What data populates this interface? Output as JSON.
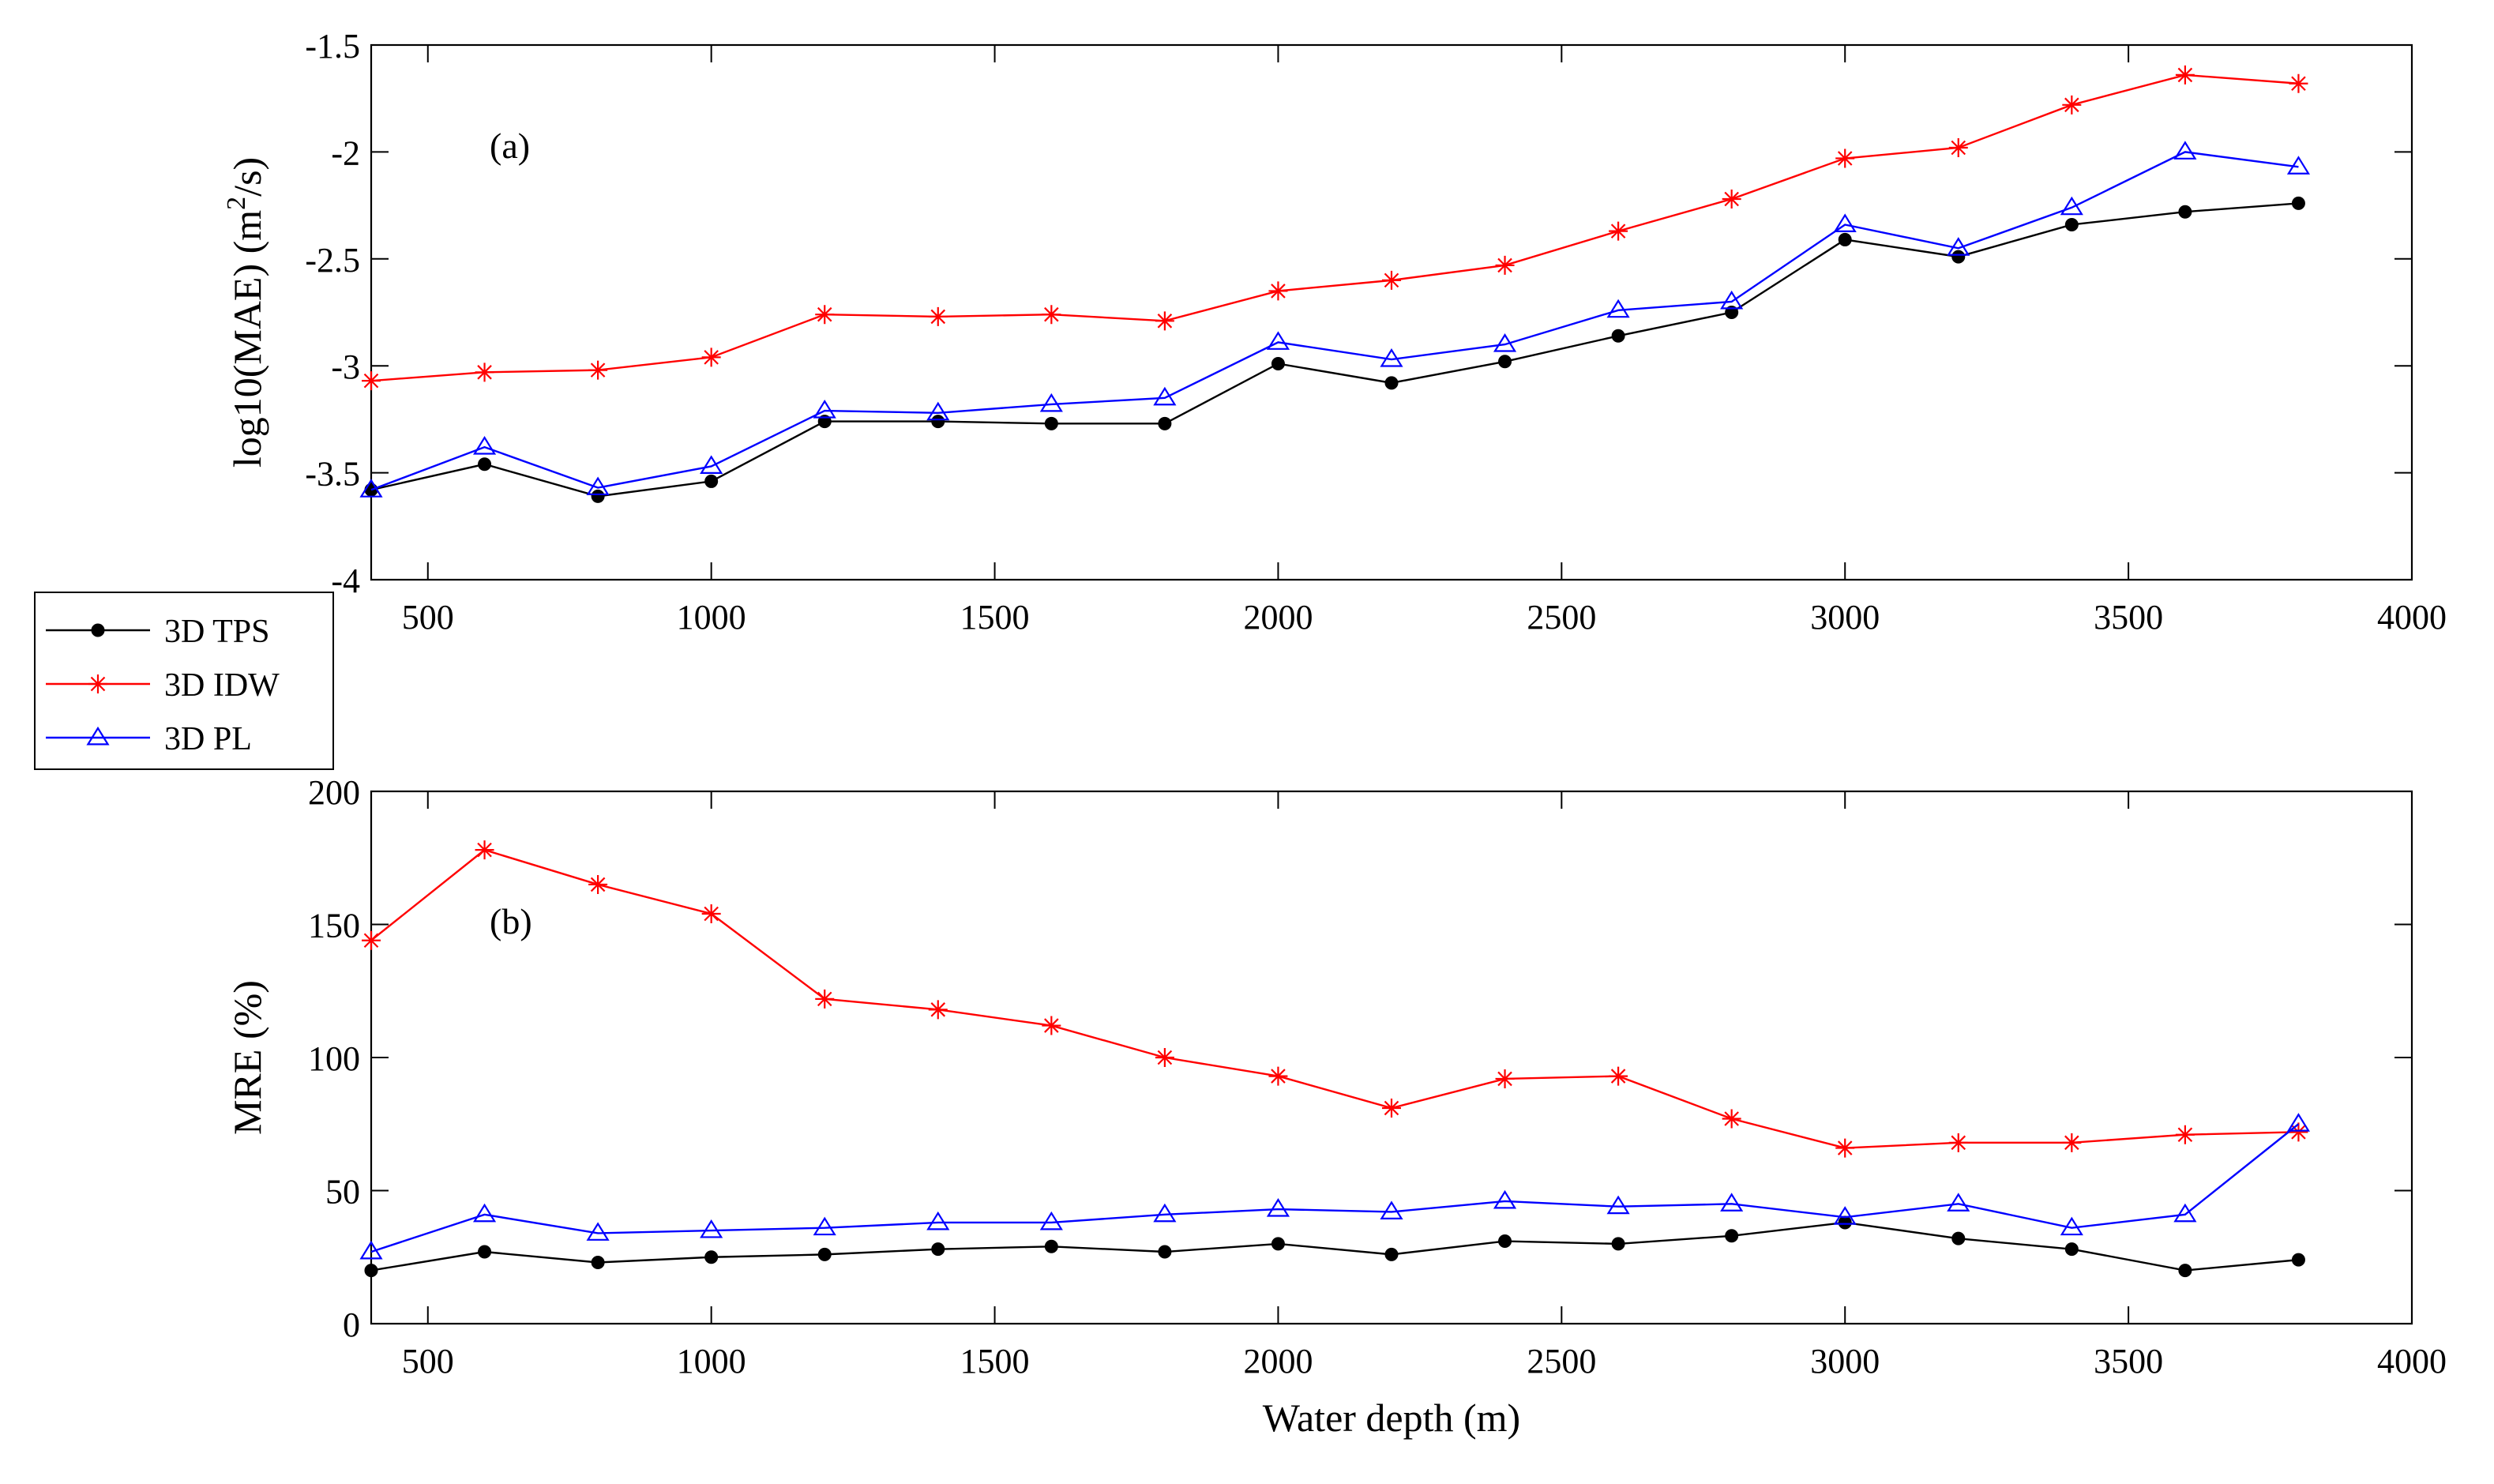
{
  "chart_data": [
    {
      "type": "line",
      "panel_label": "(a)",
      "xlabel": "",
      "ylabel": "log10(MAE) (m²/s)",
      "ylabel_parts": [
        "log10(MAE) (m",
        "2",
        "/s)"
      ],
      "xlim": [
        400,
        4000
      ],
      "ylim": [
        -4,
        -1.5
      ],
      "xticks": [
        500,
        1000,
        1500,
        2000,
        2500,
        3000,
        3500,
        4000
      ],
      "yticks": [
        -4,
        -3.5,
        -3,
        -2.5,
        -2,
        -1.5
      ],
      "x": [
        400,
        600,
        800,
        1000,
        1200,
        1400,
        1600,
        1800,
        2000,
        2200,
        2400,
        2600,
        2800,
        3000,
        3200,
        3400,
        3600,
        3800
      ],
      "series": [
        {
          "name": "3D TPS",
          "color": "#000000",
          "marker": "dot",
          "values": [
            -3.58,
            -3.46,
            -3.61,
            -3.54,
            -3.26,
            -3.26,
            -3.27,
            -3.27,
            -2.99,
            -3.08,
            -2.98,
            -2.86,
            -2.75,
            -2.41,
            -2.49,
            -2.34,
            -2.28,
            -2.24
          ]
        },
        {
          "name": "3D IDW",
          "color": "#ff0000",
          "marker": "star",
          "values": [
            -3.07,
            -3.03,
            -3.02,
            -2.96,
            -2.76,
            -2.77,
            -2.76,
            -2.79,
            -2.65,
            -2.6,
            -2.53,
            -2.37,
            -2.22,
            -2.03,
            -1.98,
            -1.78,
            -1.64,
            -1.68
          ]
        },
        {
          "name": "3D PL",
          "color": "#0000ff",
          "marker": "triangle",
          "values": [
            -3.58,
            -3.38,
            -3.57,
            -3.47,
            -3.21,
            -3.22,
            -3.18,
            -3.15,
            -2.89,
            -2.97,
            -2.9,
            -2.74,
            -2.7,
            -2.34,
            -2.45,
            -2.26,
            -2.0,
            -2.07
          ]
        }
      ]
    },
    {
      "type": "line",
      "panel_label": "(b)",
      "xlabel": "Water depth (m)",
      "ylabel": "MRE (%)",
      "xlim": [
        400,
        4000
      ],
      "ylim": [
        0,
        200
      ],
      "xticks": [
        500,
        1000,
        1500,
        2000,
        2500,
        3000,
        3500,
        4000
      ],
      "yticks": [
        0,
        50,
        100,
        150,
        200
      ],
      "x": [
        400,
        600,
        800,
        1000,
        1200,
        1400,
        1600,
        1800,
        2000,
        2200,
        2400,
        2600,
        2800,
        3000,
        3200,
        3400,
        3600,
        3800
      ],
      "series": [
        {
          "name": "3D TPS",
          "color": "#000000",
          "marker": "dot",
          "values": [
            20,
            27,
            23,
            25,
            26,
            28,
            29,
            27,
            30,
            26,
            31,
            30,
            33,
            38,
            32,
            28,
            20,
            24
          ]
        },
        {
          "name": "3D IDW",
          "color": "#ff0000",
          "marker": "star",
          "values": [
            144,
            178,
            165,
            154,
            122,
            118,
            112,
            100,
            93,
            81,
            92,
            93,
            77,
            66,
            68,
            68,
            71,
            72
          ]
        },
        {
          "name": "3D PL",
          "color": "#0000ff",
          "marker": "triangle",
          "values": [
            27,
            41,
            34,
            35,
            36,
            38,
            38,
            41,
            43,
            42,
            46,
            44,
            45,
            40,
            45,
            36,
            41,
            75
          ]
        }
      ]
    }
  ],
  "legend": [
    {
      "name": "3D TPS",
      "color": "#000000",
      "marker": "dot"
    },
    {
      "name": "3D IDW",
      "color": "#ff0000",
      "marker": "star"
    },
    {
      "name": "3D PL",
      "color": "#0000ff",
      "marker": "triangle"
    }
  ]
}
